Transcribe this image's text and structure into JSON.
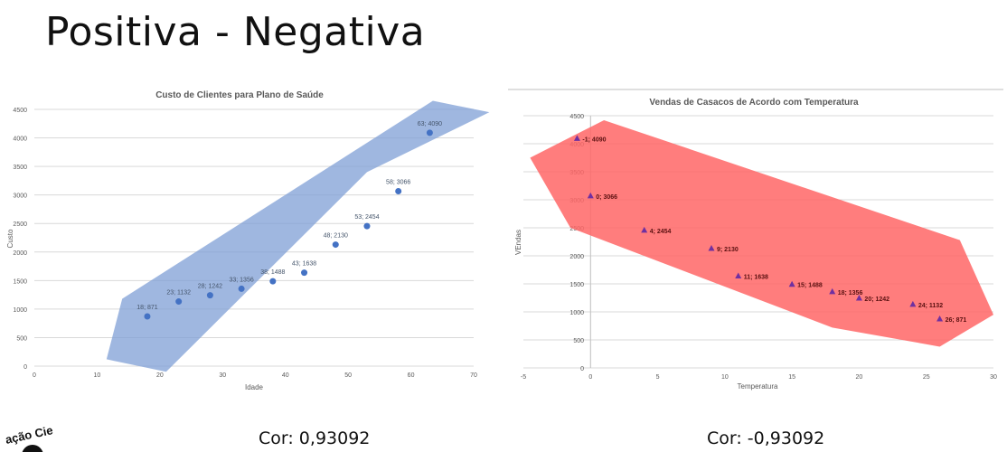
{
  "slide": {
    "title": "Positiva - Negativa",
    "logo_text": "ação Cie"
  },
  "captions": {
    "left": "Cor: 0,93092",
    "right": "Cor: -0,93092"
  },
  "colors": {
    "left_band": "#7f9fd6",
    "left_points": "#4472c4",
    "right_band": "#ff6666",
    "right_points": "#7030a0",
    "grid": "#d9d9d9"
  },
  "chart_data": [
    {
      "type": "scatter",
      "title": "Custo de Clientes para Plano de Saúde",
      "xlabel": "Idade",
      "ylabel": "Custo",
      "xlim": [
        0,
        70
      ],
      "ylim": [
        0,
        4500
      ],
      "xticks": [
        0,
        10,
        20,
        30,
        40,
        50,
        60,
        70
      ],
      "yticks": [
        0,
        500,
        1000,
        1500,
        2000,
        2500,
        3000,
        3500,
        4000,
        4500
      ],
      "grid": true,
      "marker": "circle",
      "points": [
        {
          "x": 18,
          "y": 871,
          "label": "18; 871"
        },
        {
          "x": 23,
          "y": 1132,
          "label": "23; 1132"
        },
        {
          "x": 28,
          "y": 1242,
          "label": "28; 1242"
        },
        {
          "x": 33,
          "y": 1356,
          "label": "33; 1356"
        },
        {
          "x": 38,
          "y": 1488,
          "label": "38; 1488"
        },
        {
          "x": 43,
          "y": 1638,
          "label": "43; 1638"
        },
        {
          "x": 48,
          "y": 2130,
          "label": "48; 2130"
        },
        {
          "x": 53,
          "y": 2454,
          "label": "53; 2454"
        },
        {
          "x": 58,
          "y": 3066,
          "label": "58; 3066"
        },
        {
          "x": 63,
          "y": 4090,
          "label": "63; 4090"
        }
      ]
    },
    {
      "type": "scatter",
      "title": "Vendas de Casacos de Acordo com Temperatura",
      "xlabel": "Temperatura",
      "ylabel": "VEndas",
      "xlim": [
        -5,
        30
      ],
      "ylim": [
        0,
        4500
      ],
      "xticks": [
        -5,
        0,
        5,
        10,
        15,
        20,
        25,
        30
      ],
      "yticks": [
        0,
        500,
        1000,
        1500,
        2000,
        2500,
        3000,
        3500,
        4000,
        4500
      ],
      "grid": true,
      "marker": "triangle",
      "points": [
        {
          "x": -1,
          "y": 4090,
          "label": "-1; 4090"
        },
        {
          "x": 0,
          "y": 3066,
          "label": "0; 3066"
        },
        {
          "x": 4,
          "y": 2454,
          "label": "4; 2454"
        },
        {
          "x": 9,
          "y": 2130,
          "label": "9; 2130"
        },
        {
          "x": 11,
          "y": 1638,
          "label": "11; 1638"
        },
        {
          "x": 15,
          "y": 1488,
          "label": "15; 1488"
        },
        {
          "x": 18,
          "y": 1356,
          "label": "18; 1356"
        },
        {
          "x": 20,
          "y": 1242,
          "label": "20; 1242"
        },
        {
          "x": 24,
          "y": 1132,
          "label": "24; 1132"
        },
        {
          "x": 26,
          "y": 871,
          "label": "26; 871"
        }
      ]
    }
  ]
}
